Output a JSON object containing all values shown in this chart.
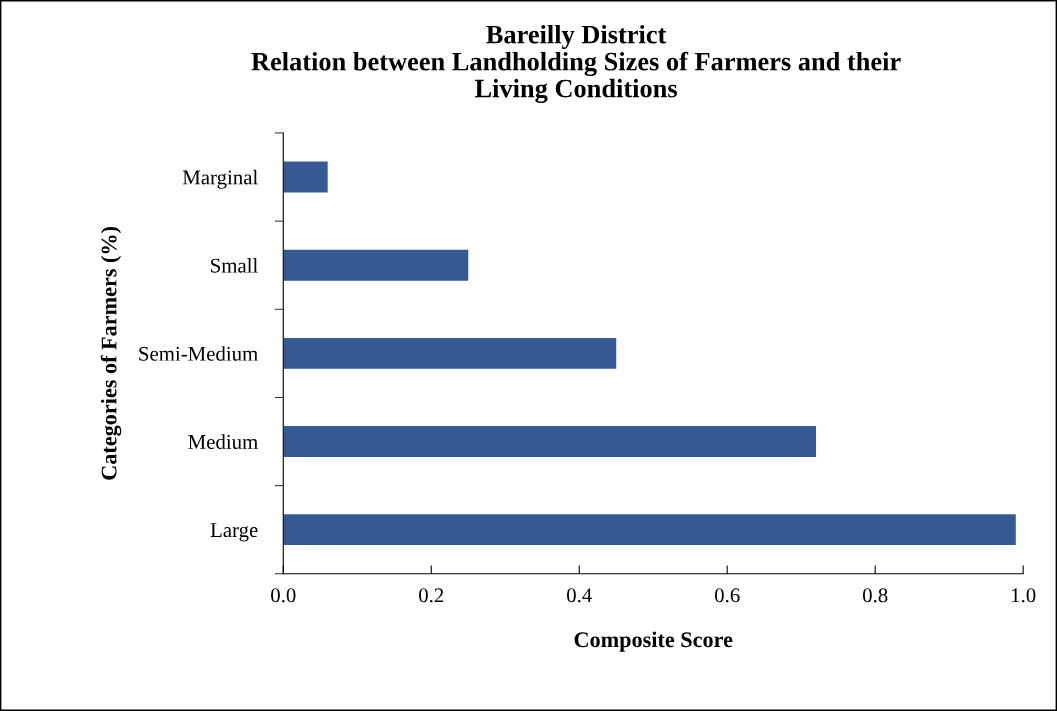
{
  "chart_data": {
    "type": "bar",
    "orientation": "horizontal",
    "title": "Bareilly District\nRelation between Landholding Sizes of Farmers and their\nLiving Conditions",
    "xlabel": "Composite Score",
    "ylabel": "Categories of Farmers (%)",
    "categories": [
      "Marginal",
      "Small",
      "Semi-Medium",
      "Medium",
      "Large"
    ],
    "values": [
      0.06,
      0.25,
      0.45,
      0.72,
      0.99
    ],
    "color": "#365a96",
    "xlim": [
      0,
      1.0
    ],
    "xticks": [
      {
        "value": 0,
        "label": "0.0"
      },
      {
        "value": 0.2,
        "label": "0.2"
      },
      {
        "value": 0.4,
        "label": "0.4"
      },
      {
        "value": 0.6,
        "label": "0.6"
      },
      {
        "value": 0.8,
        "label": "0.8"
      },
      {
        "value": 1.0,
        "label": "1.0"
      }
    ],
    "grid": false,
    "legend": false
  }
}
